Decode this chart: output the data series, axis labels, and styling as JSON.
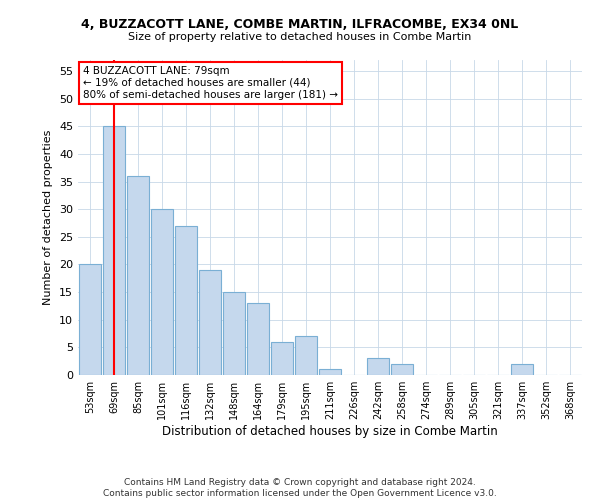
{
  "title": "4, BUZZACOTT LANE, COMBE MARTIN, ILFRACOMBE, EX34 0NL",
  "subtitle": "Size of property relative to detached houses in Combe Martin",
  "xlabel": "Distribution of detached houses by size in Combe Martin",
  "ylabel": "Number of detached properties",
  "categories": [
    "53sqm",
    "69sqm",
    "85sqm",
    "101sqm",
    "116sqm",
    "132sqm",
    "148sqm",
    "164sqm",
    "179sqm",
    "195sqm",
    "211sqm",
    "226sqm",
    "242sqm",
    "258sqm",
    "274sqm",
    "289sqm",
    "305sqm",
    "321sqm",
    "337sqm",
    "352sqm",
    "368sqm"
  ],
  "values": [
    20,
    45,
    36,
    30,
    27,
    19,
    15,
    13,
    6,
    7,
    1,
    0,
    3,
    2,
    0,
    0,
    0,
    0,
    2,
    0,
    0
  ],
  "bar_color": "#c5d8ed",
  "bar_edge_color": "#7aafd4",
  "red_line_x": 1,
  "annotation_text": "4 BUZZACOTT LANE: 79sqm\n← 19% of detached houses are smaller (44)\n80% of semi-detached houses are larger (181) →",
  "annotation_box_color": "white",
  "annotation_box_edge_color": "red",
  "ylim": [
    0,
    57
  ],
  "yticks": [
    0,
    5,
    10,
    15,
    20,
    25,
    30,
    35,
    40,
    45,
    50,
    55
  ],
  "footer": "Contains HM Land Registry data © Crown copyright and database right 2024.\nContains public sector information licensed under the Open Government Licence v3.0.",
  "bg_color": "#ffffff",
  "grid_color": "#c8d8e8"
}
